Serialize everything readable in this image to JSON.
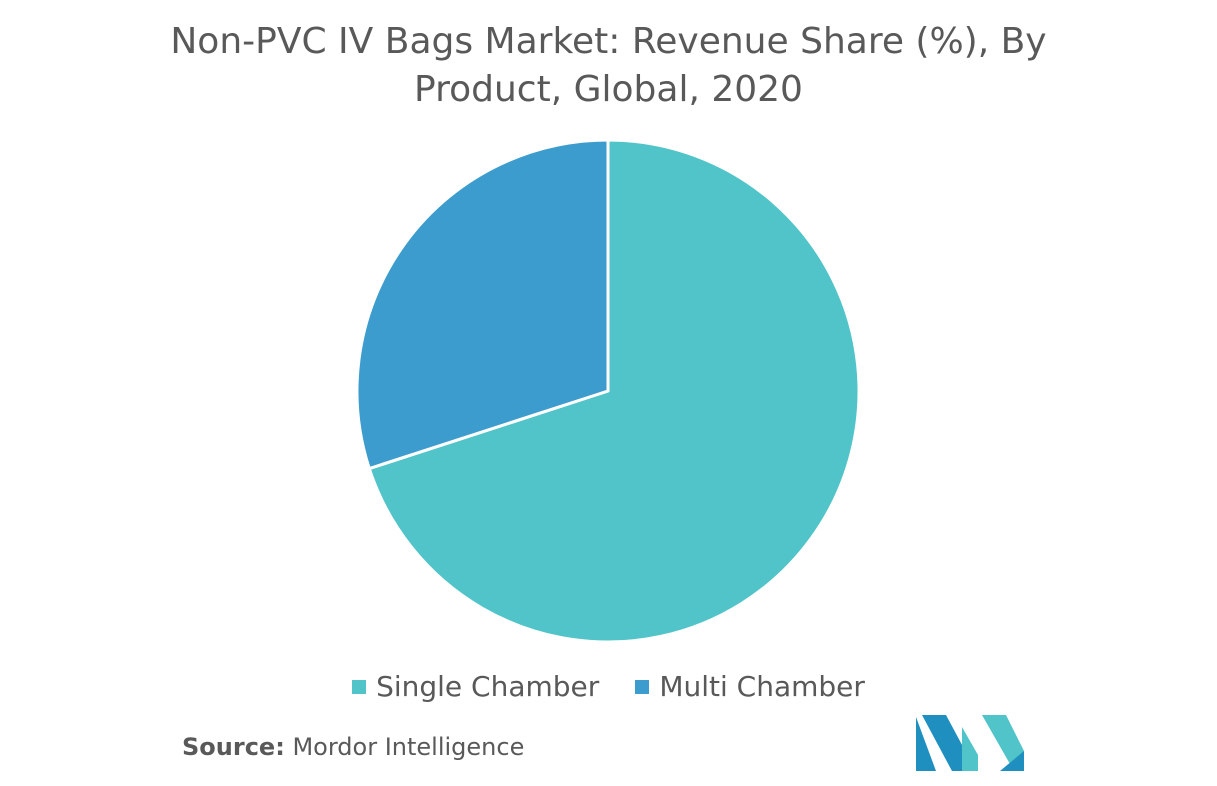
{
  "chart_data": {
    "type": "pie",
    "title_lines": [
      "Non-PVC IV Bags Market: Revenue Share (%), By",
      "Product, Global, 2020"
    ],
    "slices": [
      {
        "label": "Single Chamber",
        "value": 70,
        "color": "#50c4c8"
      },
      {
        "label": "Multi Chamber",
        "value": 30,
        "color": "#3b9ccd"
      }
    ],
    "start_angle_deg": 0,
    "direction": "clockwise",
    "legend_position": "bottom"
  },
  "source": {
    "label": "Source:",
    "text": "Mordor Intelligence"
  },
  "logo": {
    "icon": "mordor-intelligence-logo",
    "colors": [
      "#1f8fc0",
      "#50c4c8"
    ]
  }
}
